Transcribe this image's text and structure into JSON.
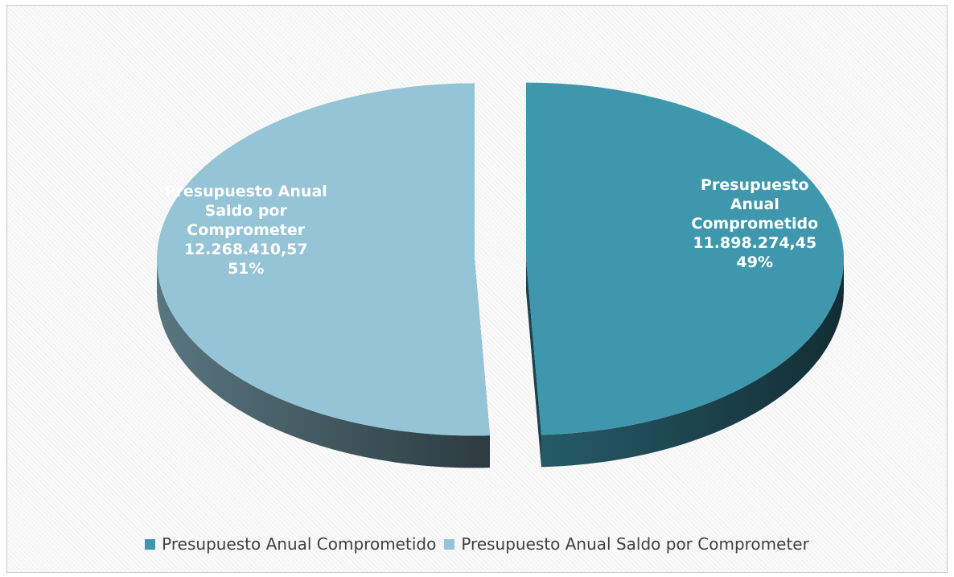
{
  "chart_data": {
    "type": "pie3d",
    "categories": [
      "Presupuesto Anual Comprometido",
      "Presupuesto Anual Saldo por Comprometer"
    ],
    "values": [
      11898274.45,
      12268410.57
    ],
    "value_labels": [
      "11.898.274,45",
      "12.268.410,57"
    ],
    "percent_labels": [
      "49%",
      "51%"
    ],
    "colors": [
      "#3f97ad",
      "#94c4d6"
    ],
    "legend": "bottom"
  }
}
